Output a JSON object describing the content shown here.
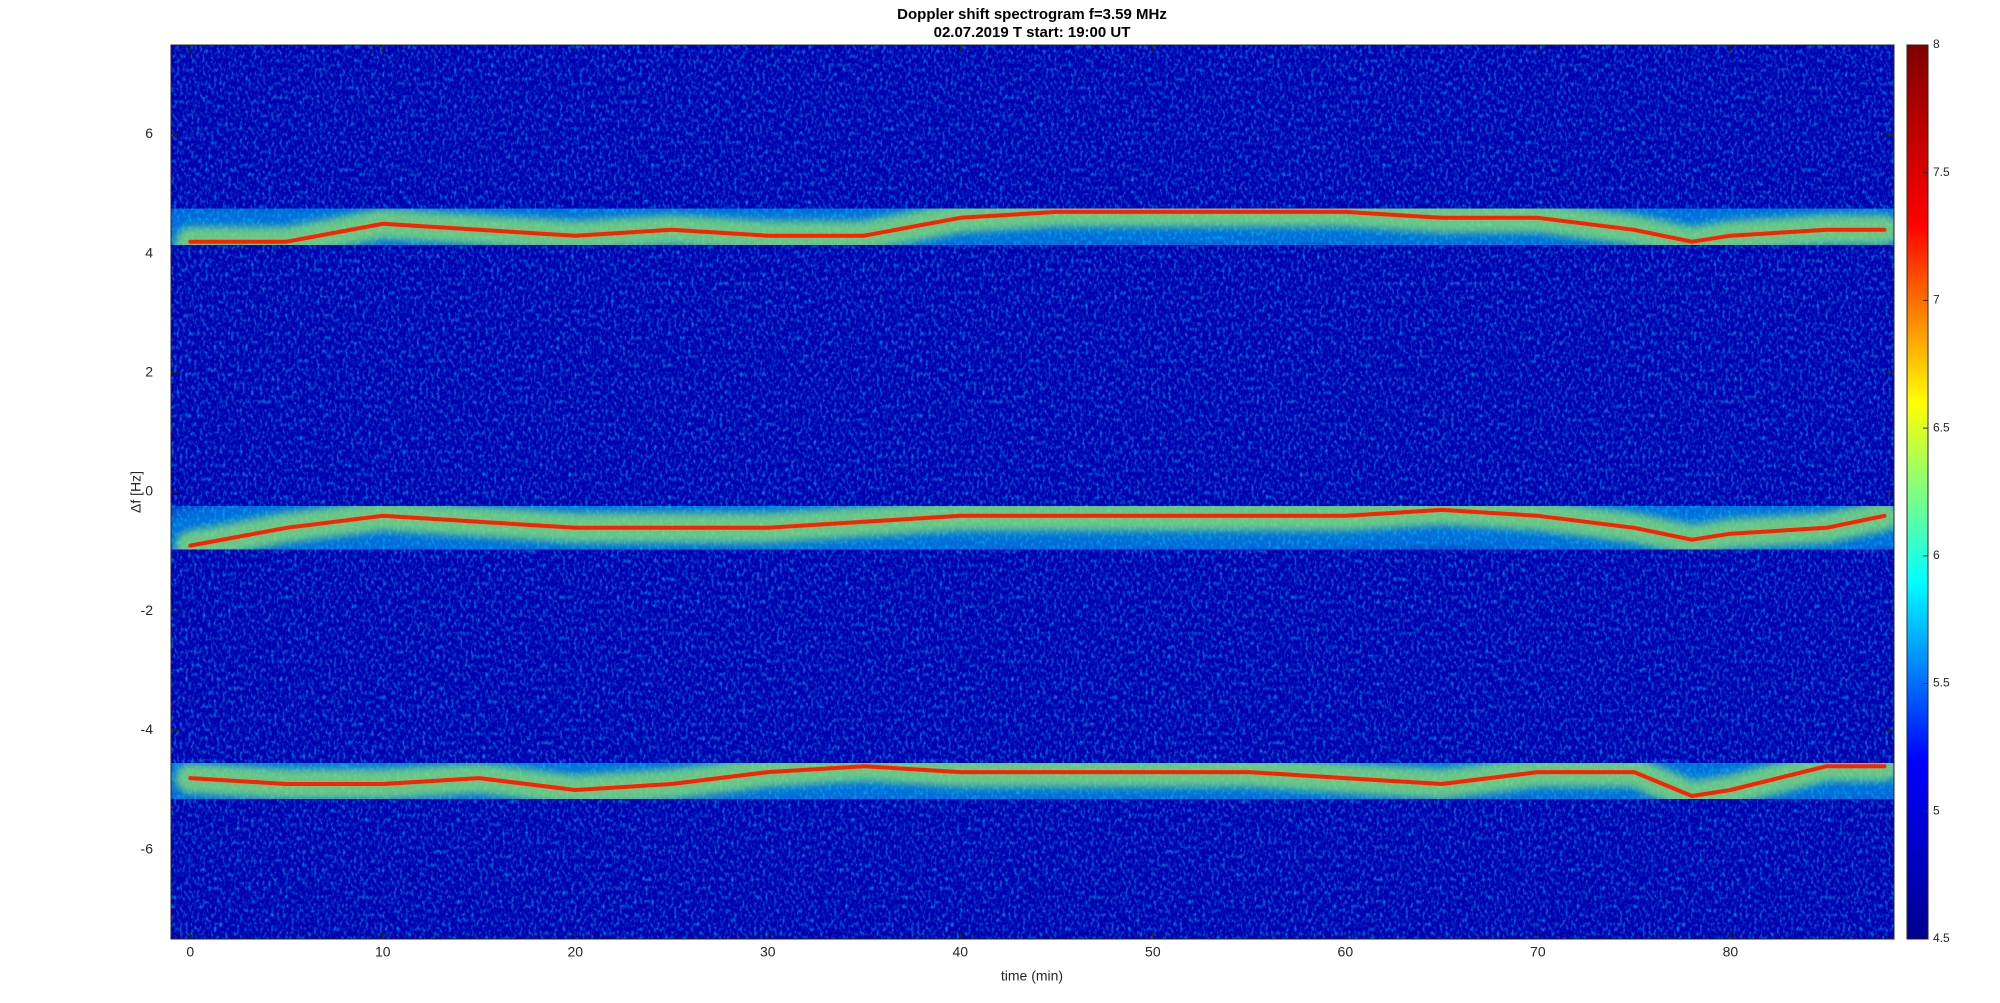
{
  "chart_data": {
    "type": "spectrogram",
    "title": "Doppler shift spectrogram f=3.59 MHz",
    "subtitle": "02.07.2019   T start: 19:00 UT",
    "x_label": "time (min)",
    "y_label": "Δf [Hz]",
    "x": [
      0,
      5,
      10,
      15,
      20,
      25,
      30,
      35,
      40,
      45,
      50,
      55,
      60,
      65,
      70,
      75,
      78,
      80,
      85,
      88
    ],
    "series": [
      {
        "color": "#ff2000",
        "values": [
          4.2,
          4.2,
          4.5,
          4.4,
          4.3,
          4.4,
          4.3,
          4.3,
          4.6,
          4.7,
          4.7,
          4.7,
          4.7,
          4.6,
          4.6,
          4.4,
          4.2,
          4.3,
          4.4,
          4.4
        ]
      },
      {
        "color": "#ff2000",
        "values": [
          -0.9,
          -0.6,
          -0.4,
          -0.5,
          -0.6,
          -0.6,
          -0.6,
          -0.5,
          -0.4,
          -0.4,
          -0.4,
          -0.4,
          -0.4,
          -0.3,
          -0.4,
          -0.6,
          -0.8,
          -0.7,
          -0.6,
          -0.4
        ]
      },
      {
        "color": "#ff2000",
        "values": [
          -4.8,
          -4.9,
          -4.9,
          -4.8,
          -5.0,
          -4.9,
          -4.7,
          -4.6,
          -4.7,
          -4.7,
          -4.7,
          -4.7,
          -4.8,
          -4.9,
          -4.7,
          -4.7,
          -5.1,
          -5.0,
          -4.6,
          -4.6
        ]
      }
    ],
    "xlim": [
      -1,
      88.5
    ],
    "xticks": [
      0,
      10,
      20,
      30,
      40,
      50,
      60,
      70,
      80
    ],
    "ylim": [
      -7.5,
      7.5
    ],
    "yticks": [
      -6,
      -4,
      -2,
      0,
      2,
      4,
      6
    ],
    "colormap": "jet",
    "clim": [
      4.5,
      8
    ],
    "cticks": [
      4.5,
      5,
      5.5,
      6,
      6.5,
      7,
      7.5,
      8
    ]
  }
}
